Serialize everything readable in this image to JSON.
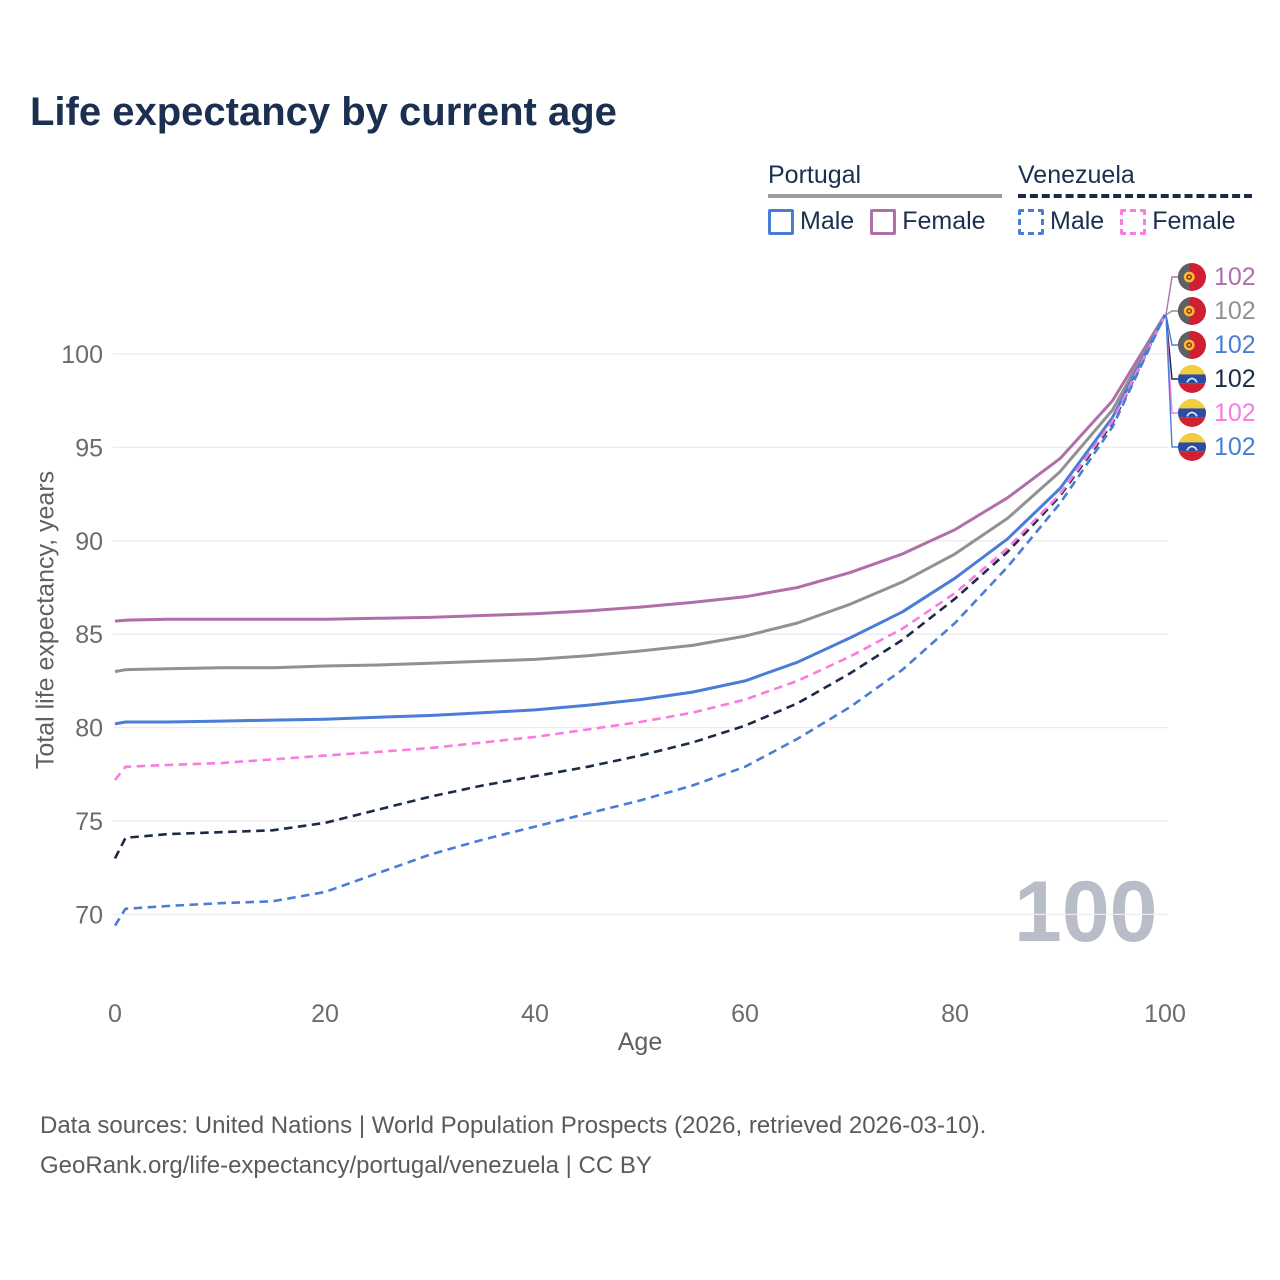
{
  "title": "Life expectancy by current age",
  "legend": {
    "groups": [
      {
        "country": "Portugal",
        "line_style": "solid",
        "underline_color": "#9a9aa0",
        "items": [
          {
            "label": "Male",
            "color": "#4a7dd6"
          },
          {
            "label": "Female",
            "color": "#b06fa8"
          }
        ]
      },
      {
        "country": "Venezuela",
        "line_style": "dashed",
        "underline_color": "#1b2b47",
        "items": [
          {
            "label": "Male",
            "color": "#4a7dd6"
          },
          {
            "label": "Female",
            "color": "#fb7be0"
          }
        ]
      }
    ]
  },
  "watermark": "100",
  "footer": {
    "line1": "Data sources: United Nations | World Population Prospects (2026, retrieved 2026-03-10).",
    "line2": "GeoRank.org/life-expectancy/portugal/venezuela | CC BY"
  },
  "chart_data": {
    "type": "line",
    "title": "Life expectancy by current age",
    "xlabel": "Age",
    "ylabel": "Total life expectancy, years",
    "x_ticks": [
      0,
      20,
      40,
      60,
      80,
      100
    ],
    "y_ticks": [
      70,
      75,
      80,
      85,
      90,
      95,
      100
    ],
    "xlim": [
      0,
      100
    ],
    "ylim": [
      68.5,
      103
    ],
    "grid": "horizontal",
    "legend_position": "top-right",
    "x": [
      0,
      1,
      5,
      10,
      15,
      20,
      25,
      30,
      35,
      40,
      45,
      50,
      55,
      60,
      65,
      70,
      75,
      80,
      85,
      90,
      95,
      100
    ],
    "series": [
      {
        "name": "Portugal Female",
        "country": "Portugal",
        "sex": "Female",
        "color": "#b06fa8",
        "dash": "solid",
        "end_label": "102",
        "values": [
          85.7,
          85.75,
          85.8,
          85.8,
          85.8,
          85.8,
          85.85,
          85.9,
          86.0,
          86.1,
          86.25,
          86.45,
          86.7,
          87.0,
          87.5,
          88.3,
          89.3,
          90.6,
          92.3,
          94.4,
          97.5,
          102.1
        ]
      },
      {
        "name": "Portugal Both sexes",
        "country": "Portugal",
        "sex": "Both",
        "color": "#919191",
        "dash": "solid",
        "end_label": "102",
        "values": [
          83.0,
          83.1,
          83.15,
          83.2,
          83.2,
          83.3,
          83.35,
          83.45,
          83.55,
          83.65,
          83.85,
          84.1,
          84.4,
          84.9,
          85.6,
          86.6,
          87.8,
          89.3,
          91.2,
          93.7,
          97.0,
          102.1
        ]
      },
      {
        "name": "Portugal Male",
        "country": "Portugal",
        "sex": "Male",
        "color": "#4a7dd6",
        "dash": "solid",
        "end_label": "102",
        "values": [
          80.2,
          80.3,
          80.3,
          80.35,
          80.4,
          80.45,
          80.55,
          80.65,
          80.8,
          80.95,
          81.2,
          81.5,
          81.9,
          82.5,
          83.5,
          84.8,
          86.2,
          88.0,
          90.1,
          92.8,
          96.6,
          102.1
        ]
      },
      {
        "name": "Venezuela Both sexes",
        "country": "Venezuela",
        "sex": "Both",
        "color": "#1b2b47",
        "dash": "dashed",
        "end_label": "102",
        "values": [
          73.0,
          74.1,
          74.3,
          74.4,
          74.5,
          74.9,
          75.6,
          76.3,
          76.9,
          77.4,
          77.9,
          78.5,
          79.2,
          80.1,
          81.3,
          82.9,
          84.7,
          86.9,
          89.4,
          92.4,
          96.3,
          102.1
        ]
      },
      {
        "name": "Venezuela Female",
        "country": "Venezuela",
        "sex": "Female",
        "color": "#fb7be0",
        "dash": "dashed",
        "end_label": "102",
        "values": [
          77.2,
          77.9,
          78.0,
          78.1,
          78.3,
          78.5,
          78.7,
          78.9,
          79.2,
          79.5,
          79.9,
          80.3,
          80.8,
          81.5,
          82.5,
          83.8,
          85.3,
          87.2,
          89.6,
          92.5,
          96.4,
          102.1
        ]
      },
      {
        "name": "Venezuela Male",
        "country": "Venezuela",
        "sex": "Male",
        "color": "#4a7dd6",
        "dash": "dashed",
        "end_label": "102",
        "values": [
          69.4,
          70.3,
          70.45,
          70.6,
          70.7,
          71.2,
          72.2,
          73.2,
          74.0,
          74.7,
          75.4,
          76.1,
          76.9,
          77.9,
          79.4,
          81.1,
          83.1,
          85.6,
          88.6,
          92.0,
          96.1,
          102.1
        ]
      }
    ]
  }
}
